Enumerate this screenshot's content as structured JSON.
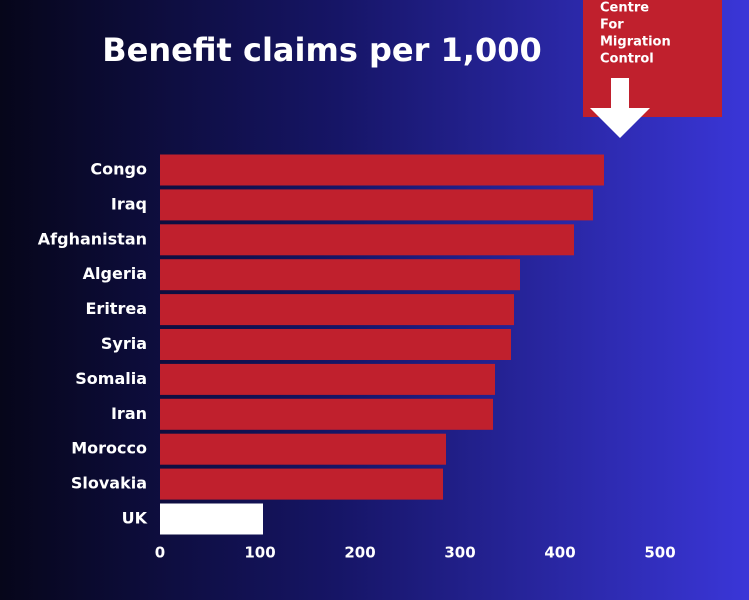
{
  "chart_data": {
    "type": "barh",
    "title": "Benefit claims per 1,000",
    "categories": [
      "Congo",
      "Iraq",
      "Afghanistan",
      "Algeria",
      "Eritrea",
      "Syria",
      "Somalia",
      "Iran",
      "Morocco",
      "Slovakia",
      "UK"
    ],
    "values": [
      444,
      433,
      414,
      360,
      354,
      351,
      335,
      333,
      286,
      283,
      103
    ],
    "colors": [
      "#c0202d",
      "#c0202d",
      "#c0202d",
      "#c0202d",
      "#c0202d",
      "#c0202d",
      "#c0202d",
      "#c0202d",
      "#c0202d",
      "#c0202d",
      "#ffffff"
    ],
    "xlim": [
      0,
      540
    ],
    "xticks": [
      0,
      100,
      200,
      300,
      400,
      500
    ],
    "logo_text": [
      "Centre",
      "For",
      "Migration",
      "Control"
    ]
  }
}
